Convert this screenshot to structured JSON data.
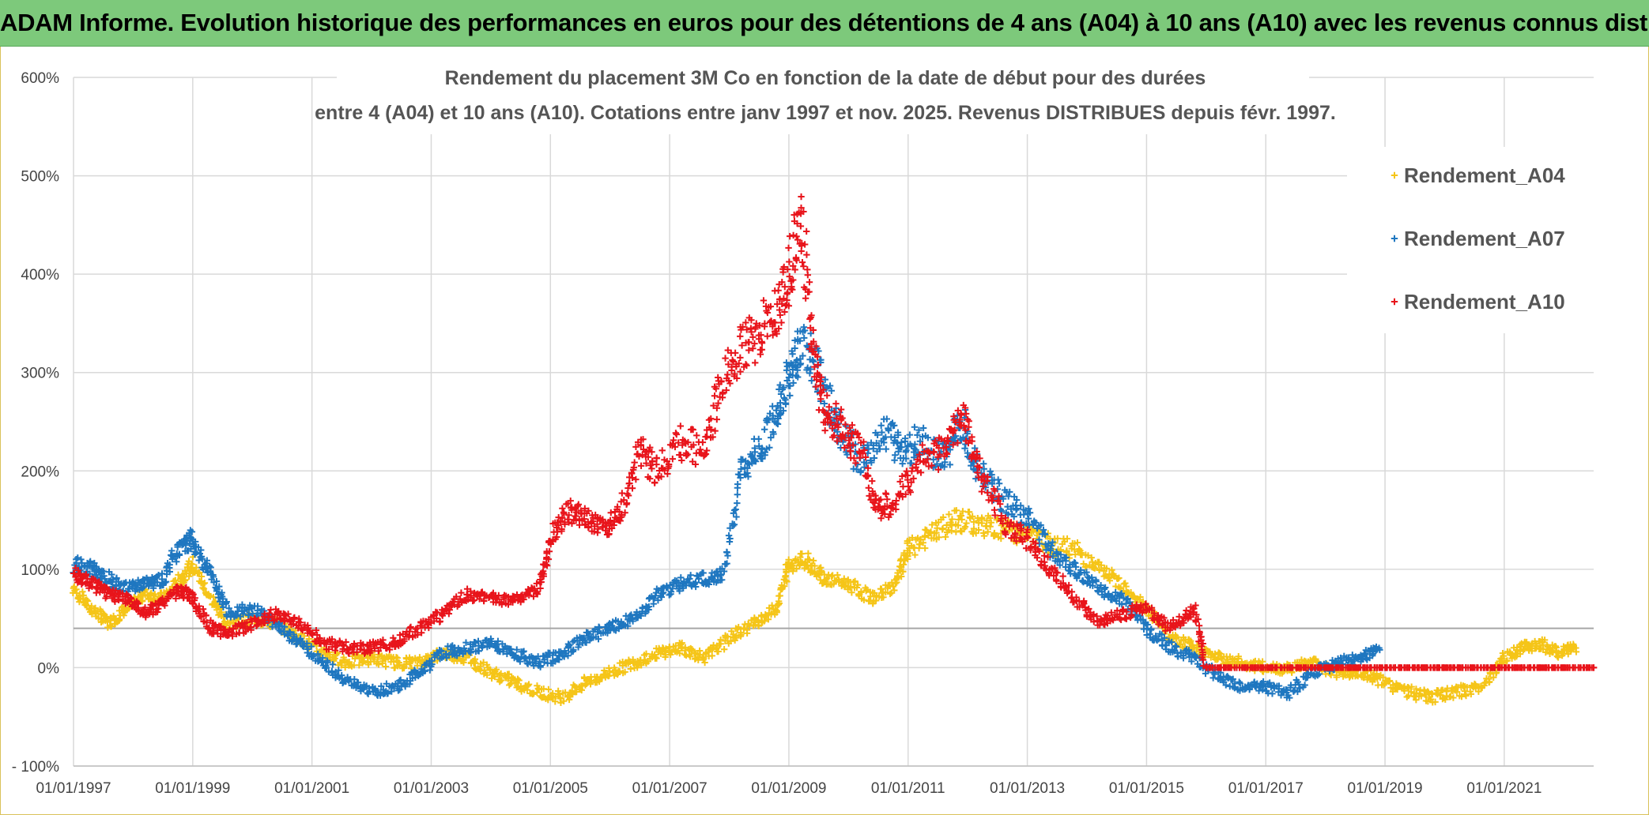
{
  "header": {
    "title": "ADAM Informe. Evolution historique des performances en euros pour des détentions de 4 ans (A04) à 10 ans (A10) avec les revenus connus distribués",
    "background_color": "#7dc97b"
  },
  "chart_data": {
    "type": "scatter",
    "title_line1": "Rendement du placement 3M Co en fonction de la date de début pour des durées",
    "title_line2": "entre 4 (A04) et 10 ans (A10). Cotations entre janv 1997 et nov. 2025. Revenus DISTRIBUES depuis févr. 1997.",
    "marker": "+",
    "xlim": [
      1997.0,
      2022.5
    ],
    "ylim": [
      -100,
      600
    ],
    "y_ticks": [
      -100,
      0,
      100,
      200,
      300,
      400,
      500,
      600
    ],
    "y_tick_labels": [
      "- 100%",
      "0%",
      "100%",
      "200%",
      "300%",
      "400%",
      "500%",
      "600%"
    ],
    "x_ticks": [
      1997,
      1999,
      2001,
      2003,
      2005,
      2007,
      2009,
      2011,
      2013,
      2015,
      2017,
      2019,
      2021
    ],
    "x_tick_labels": [
      "01/01/1997",
      "01/01/1999",
      "01/01/2001",
      "01/01/2003",
      "01/01/2005",
      "01/01/2007",
      "01/01/2009",
      "01/01/2011",
      "01/01/2013",
      "01/01/2015",
      "01/01/2017",
      "01/01/2019",
      "01/01/2021"
    ],
    "reference_line_y": 40,
    "grid": true,
    "legend_position": "top-right",
    "series": [
      {
        "name": "Rendement_A04",
        "color": "#f5c518",
        "x": [
          1997.0,
          1997.3,
          1997.6,
          1997.9,
          1998.2,
          1998.5,
          1998.8,
          1999.0,
          1999.3,
          1999.6,
          2000.0,
          2000.4,
          2000.8,
          2001.2,
          2001.6,
          2002.0,
          2002.4,
          2002.8,
          2003.2,
          2003.6,
          2004.0,
          2004.4,
          2004.8,
          2005.2,
          2005.6,
          2006.0,
          2006.4,
          2006.8,
          2007.2,
          2007.6,
          2008.0,
          2008.4,
          2008.8,
          2009.0,
          2009.3,
          2009.6,
          2010.0,
          2010.4,
          2010.8,
          2011.0,
          2011.4,
          2011.8,
          2012.2,
          2012.6,
          2013.0,
          2013.4,
          2013.8,
          2014.2,
          2014.6,
          2015.0,
          2015.4,
          2015.8,
          2016.2,
          2016.6,
          2017.0,
          2017.4,
          2017.8,
          2018.2,
          2018.6,
          2019.0,
          2019.4,
          2019.8,
          2020.2,
          2020.6,
          2021.0,
          2021.3,
          2021.6,
          2021.9,
          2022.2
        ],
        "values": [
          80,
          60,
          45,
          60,
          75,
          70,
          90,
          105,
          70,
          45,
          50,
          45,
          30,
          15,
          5,
          10,
          5,
          5,
          15,
          10,
          -5,
          -15,
          -25,
          -30,
          -15,
          -5,
          5,
          15,
          20,
          10,
          30,
          45,
          60,
          105,
          110,
          90,
          85,
          70,
          85,
          120,
          135,
          150,
          145,
          140,
          135,
          125,
          120,
          100,
          85,
          60,
          30,
          20,
          10,
          5,
          0,
          0,
          5,
          -5,
          -5,
          -15,
          -25,
          -30,
          -25,
          -20,
          10,
          20,
          25,
          15,
          20
        ]
      },
      {
        "name": "Rendement_A07",
        "color": "#1f77c0",
        "x": [
          1997.0,
          1997.3,
          1997.6,
          1997.9,
          1998.2,
          1998.5,
          1998.8,
          1999.0,
          1999.3,
          1999.6,
          2000.0,
          2000.4,
          2000.8,
          2001.2,
          2001.6,
          2002.0,
          2002.4,
          2002.8,
          2003.2,
          2003.6,
          2004.0,
          2004.4,
          2004.8,
          2005.2,
          2005.6,
          2006.0,
          2006.4,
          2006.8,
          2007.2,
          2007.6,
          2007.9,
          2008.2,
          2008.5,
          2008.8,
          2009.0,
          2009.2,
          2009.5,
          2009.8,
          2010.2,
          2010.6,
          2010.9,
          2011.2,
          2011.6,
          2011.9,
          2012.2,
          2012.6,
          2013.0,
          2013.4,
          2013.8,
          2014.2,
          2014.6,
          2015.0,
          2015.4,
          2015.8,
          2016.2,
          2016.6,
          2017.0,
          2017.4,
          2017.8,
          2018.2,
          2018.6,
          2018.9
        ],
        "values": [
          105,
          100,
          90,
          80,
          85,
          90,
          125,
          130,
          95,
          55,
          60,
          45,
          25,
          5,
          -15,
          -25,
          -20,
          -5,
          15,
          20,
          25,
          15,
          5,
          15,
          30,
          40,
          50,
          75,
          85,
          90,
          95,
          200,
          220,
          260,
          290,
          330,
          300,
          250,
          210,
          240,
          220,
          230,
          210,
          250,
          200,
          170,
          155,
          120,
          100,
          80,
          70,
          40,
          20,
          10,
          -10,
          -20,
          -20,
          -25,
          -5,
          5,
          10,
          20
        ]
      },
      {
        "name": "Rendement_A10",
        "color": "#e8141b",
        "x": [
          1997.0,
          1997.3,
          1997.6,
          1997.9,
          1998.2,
          1998.5,
          1998.8,
          1999.0,
          1999.3,
          1999.6,
          2000.0,
          2000.4,
          2000.8,
          2001.2,
          2001.6,
          2002.0,
          2002.4,
          2002.8,
          2003.2,
          2003.6,
          2004.0,
          2004.4,
          2004.8,
          2005.0,
          2005.3,
          2005.6,
          2005.9,
          2006.2,
          2006.5,
          2006.8,
          2007.2,
          2007.6,
          2007.9,
          2008.2,
          2008.5,
          2008.8,
          2009.0,
          2009.2,
          2009.4,
          2009.6,
          2009.9,
          2010.2,
          2010.5,
          2010.8,
          2011.2,
          2011.6,
          2011.9,
          2012.2,
          2012.6,
          2013.0,
          2013.4,
          2013.8,
          2014.2,
          2014.6,
          2015.0,
          2015.4,
          2015.8,
          2016.0,
          2016.5,
          2017.0,
          2017.5,
          2018.0,
          2018.5,
          2019.0,
          2019.5,
          2020.0,
          2020.5,
          2021.0,
          2021.5,
          2022.0,
          2022.5
        ],
        "values": [
          95,
          85,
          75,
          70,
          55,
          65,
          80,
          70,
          40,
          35,
          45,
          55,
          45,
          25,
          20,
          20,
          25,
          40,
          55,
          75,
          70,
          70,
          80,
          130,
          160,
          150,
          140,
          160,
          220,
          200,
          230,
          220,
          300,
          320,
          340,
          360,
          400,
          460,
          330,
          260,
          240,
          220,
          160,
          170,
          210,
          220,
          260,
          200,
          150,
          130,
          100,
          70,
          45,
          55,
          60,
          40,
          60,
          0,
          0,
          0,
          0,
          0,
          0,
          0,
          0,
          0,
          0,
          0,
          0,
          0,
          0
        ]
      }
    ]
  }
}
